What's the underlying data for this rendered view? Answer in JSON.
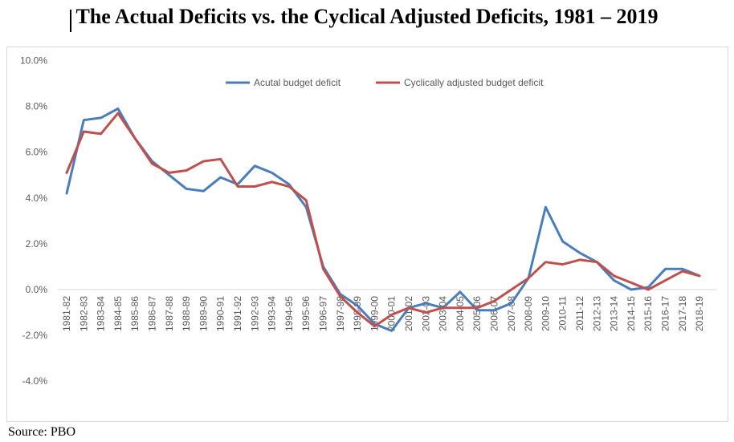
{
  "title": "The Actual Deficits vs. the Cyclical Adjusted Deficits, 1981 – 2019",
  "source": "Source: PBO",
  "chart_data": {
    "type": "line",
    "title": "The Actual Deficits vs. the Cyclical Adjusted Deficits, 1981 – 2019",
    "xlabel": "",
    "ylabel": "",
    "ylim": [
      -5,
      10
    ],
    "yticks": [
      "-4.0%",
      "-2.0%",
      "0.0%",
      "2.0%",
      "4.0%",
      "6.0%",
      "8.0%",
      "10.0%"
    ],
    "ytick_values": [
      -4,
      -2,
      0,
      2,
      4,
      6,
      8,
      10
    ],
    "grid": false,
    "legend_position": "top-center",
    "categories": [
      "1981-82",
      "1982-83",
      "1983-84",
      "1984-85",
      "1985-86",
      "1986-87",
      "1987-88",
      "1988-89",
      "1989-90",
      "1990-91",
      "1991-92",
      "1992-93",
      "1993-94",
      "1994-95",
      "1995-96",
      "1996-97",
      "1997-98",
      "1998-99",
      "1999-00",
      "2000-01",
      "2001-02",
      "2002-03",
      "2003-04",
      "2004-05",
      "2005-06",
      "2006-07",
      "2007-08",
      "2008-09",
      "2009-10",
      "2010-11",
      "2011-12",
      "2012-13",
      "2013-14",
      "2014-15",
      "2015-16",
      "2016-17",
      "2017-18",
      "2018-19"
    ],
    "series": [
      {
        "name": "Acutal budget deficit",
        "color": "#4a7ebb",
        "values": [
          4.2,
          7.4,
          7.5,
          7.9,
          6.6,
          5.6,
          5.0,
          4.4,
          4.3,
          4.9,
          4.6,
          5.4,
          5.1,
          4.6,
          3.6,
          1.0,
          -0.2,
          -0.7,
          -1.5,
          -1.8,
          -0.8,
          -0.6,
          -0.8,
          -0.1,
          -0.9,
          -0.9,
          -0.6,
          0.5,
          3.6,
          2.1,
          1.6,
          1.2,
          0.4,
          0.0,
          0.1,
          0.9,
          0.9,
          0.6
        ]
      },
      {
        "name": "Cyclically adjusted budget deficit",
        "color": "#c0504d",
        "values": [
          5.1,
          6.9,
          6.8,
          7.7,
          6.6,
          5.5,
          5.1,
          5.2,
          5.6,
          5.7,
          4.5,
          4.5,
          4.7,
          4.5,
          3.9,
          0.9,
          -0.3,
          -1.0,
          -1.6,
          -1.1,
          -0.8,
          -1.0,
          -0.8,
          -0.8,
          -0.8,
          -0.5,
          0.0,
          0.5,
          1.2,
          1.1,
          1.3,
          1.2,
          0.6,
          0.3,
          0.0,
          0.4,
          0.8,
          0.6
        ]
      }
    ]
  }
}
